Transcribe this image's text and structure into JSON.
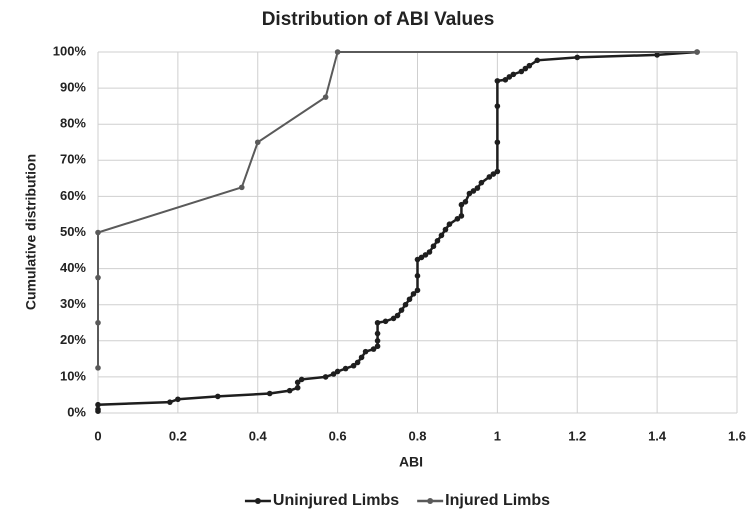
{
  "chart_data": {
    "type": "line",
    "title": "Distribution of ABI Values",
    "x_label": "ABI",
    "y_label": "Cumulative distribution",
    "xlim": [
      0,
      1.6
    ],
    "xticks": [
      0,
      0.2,
      0.4,
      0.6,
      0.8,
      1,
      1.2,
      1.4,
      1.6
    ],
    "ylim": [
      0,
      100
    ],
    "yticks": [
      {
        "value": 0,
        "label": "0%"
      },
      {
        "value": 10,
        "label": "10%"
      },
      {
        "value": 20,
        "label": "20%"
      },
      {
        "value": 30,
        "label": "30%"
      },
      {
        "value": 40,
        "label": "40%"
      },
      {
        "value": 50,
        "label": "50%"
      },
      {
        "value": 60,
        "label": "60%"
      },
      {
        "value": 70,
        "label": "70%"
      },
      {
        "value": 80,
        "label": "80%"
      },
      {
        "value": 90,
        "label": "90%"
      },
      {
        "value": 100,
        "label": "100%"
      }
    ],
    "grid": true,
    "legend": "bottom",
    "series": [
      {
        "name": "Uninjured Limbs",
        "color": "#1e1e1e",
        "x": [
          0,
          0,
          0,
          0.18,
          0.2,
          0.3,
          0.43,
          0.48,
          0.5,
          0.5,
          0.51,
          0.57,
          0.59,
          0.6,
          0.62,
          0.64,
          0.65,
          0.66,
          0.67,
          0.69,
          0.7,
          0.7,
          0.7,
          0.7,
          0.72,
          0.74,
          0.75,
          0.76,
          0.77,
          0.78,
          0.79,
          0.8,
          0.8,
          0.8,
          0.81,
          0.82,
          0.83,
          0.84,
          0.85,
          0.86,
          0.87,
          0.88,
          0.9,
          0.91,
          0.91,
          0.92,
          0.93,
          0.94,
          0.95,
          0.96,
          0.98,
          0.99,
          1,
          1,
          1,
          1,
          1.02,
          1.03,
          1.04,
          1.06,
          1.07,
          1.08,
          1.1,
          1.2,
          1.4,
          1.5
        ],
        "values": [
          0.5,
          1,
          2.3,
          3,
          3.8,
          4.6,
          5.4,
          6.2,
          7,
          8.5,
          9.3,
          10,
          10.8,
          11.5,
          12.3,
          13.1,
          14,
          15.4,
          17,
          17.7,
          18.5,
          20,
          22,
          25,
          25.4,
          26.2,
          27,
          28.5,
          30,
          31.5,
          33,
          34,
          38,
          42.5,
          43.1,
          43.8,
          44.6,
          46.2,
          47.7,
          49.2,
          50.8,
          52.3,
          53.8,
          54.6,
          57.7,
          58.5,
          60.8,
          61.5,
          62.3,
          63.8,
          65.4,
          66.2,
          66.9,
          75,
          85,
          92,
          92.3,
          93.1,
          93.8,
          94.6,
          95.4,
          96.2,
          97.7,
          98.5,
          99.2,
          100
        ]
      },
      {
        "name": "Injured Limbs",
        "color": "#5a5a5a",
        "x": [
          0,
          0,
          0,
          0,
          0.36,
          0.4,
          0.57,
          0.6,
          1.5
        ],
        "values": [
          12.5,
          25,
          37.5,
          50,
          62.5,
          75,
          87.5,
          100,
          100
        ]
      }
    ]
  }
}
